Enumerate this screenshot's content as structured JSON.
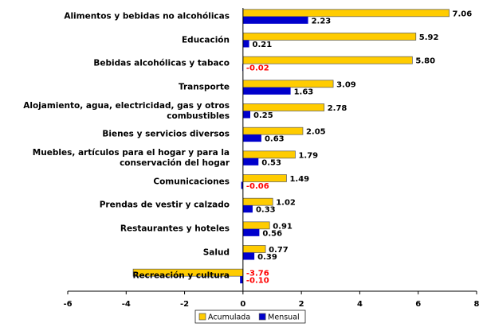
{
  "chart_data": {
    "type": "bar",
    "orientation": "horizontal",
    "categories": [
      "Alimentos y bebidas no alcohólicas",
      "Educación",
      "Bebidas alcohólicas y tabaco",
      "Transporte",
      "Alojamiento, agua, electricidad, gas y otros\ncombustibles",
      "Bienes y servicios diversos",
      "Muebles, artículos para el hogar y para la\nconservación del hogar",
      "Comunicaciones",
      "Prendas de vestir y calzado",
      "Restaurantes y hoteles",
      "Salud",
      "Recreación y cultura"
    ],
    "series": [
      {
        "name": "Acumulada",
        "color": "#ffcc00",
        "values": [
          7.06,
          5.92,
          5.8,
          3.09,
          2.78,
          2.05,
          1.79,
          1.49,
          1.02,
          0.91,
          0.77,
          -3.76
        ],
        "value_labels": [
          "7.06",
          "5.92",
          "5.80",
          "3.09",
          "2.78",
          "2.05",
          "1.79",
          "1.49",
          "1.02",
          "0.91",
          "0.77",
          "-3.76"
        ]
      },
      {
        "name": "Mensual",
        "color": "#0000cc",
        "values": [
          2.23,
          0.21,
          -0.02,
          1.63,
          0.25,
          0.63,
          0.53,
          -0.06,
          0.33,
          0.56,
          0.39,
          -0.1
        ],
        "value_labels": [
          "2.23",
          "0.21",
          "-0.02",
          "1.63",
          "0.25",
          "0.63",
          "0.53",
          "-0.06",
          "0.33",
          "0.56",
          "0.39",
          "-0.10"
        ]
      }
    ],
    "xlim": [
      -6,
      8
    ],
    "xticks": [
      -6,
      -4,
      -2,
      0,
      2,
      4,
      6,
      8
    ],
    "grid": false,
    "legend": "bottom"
  }
}
